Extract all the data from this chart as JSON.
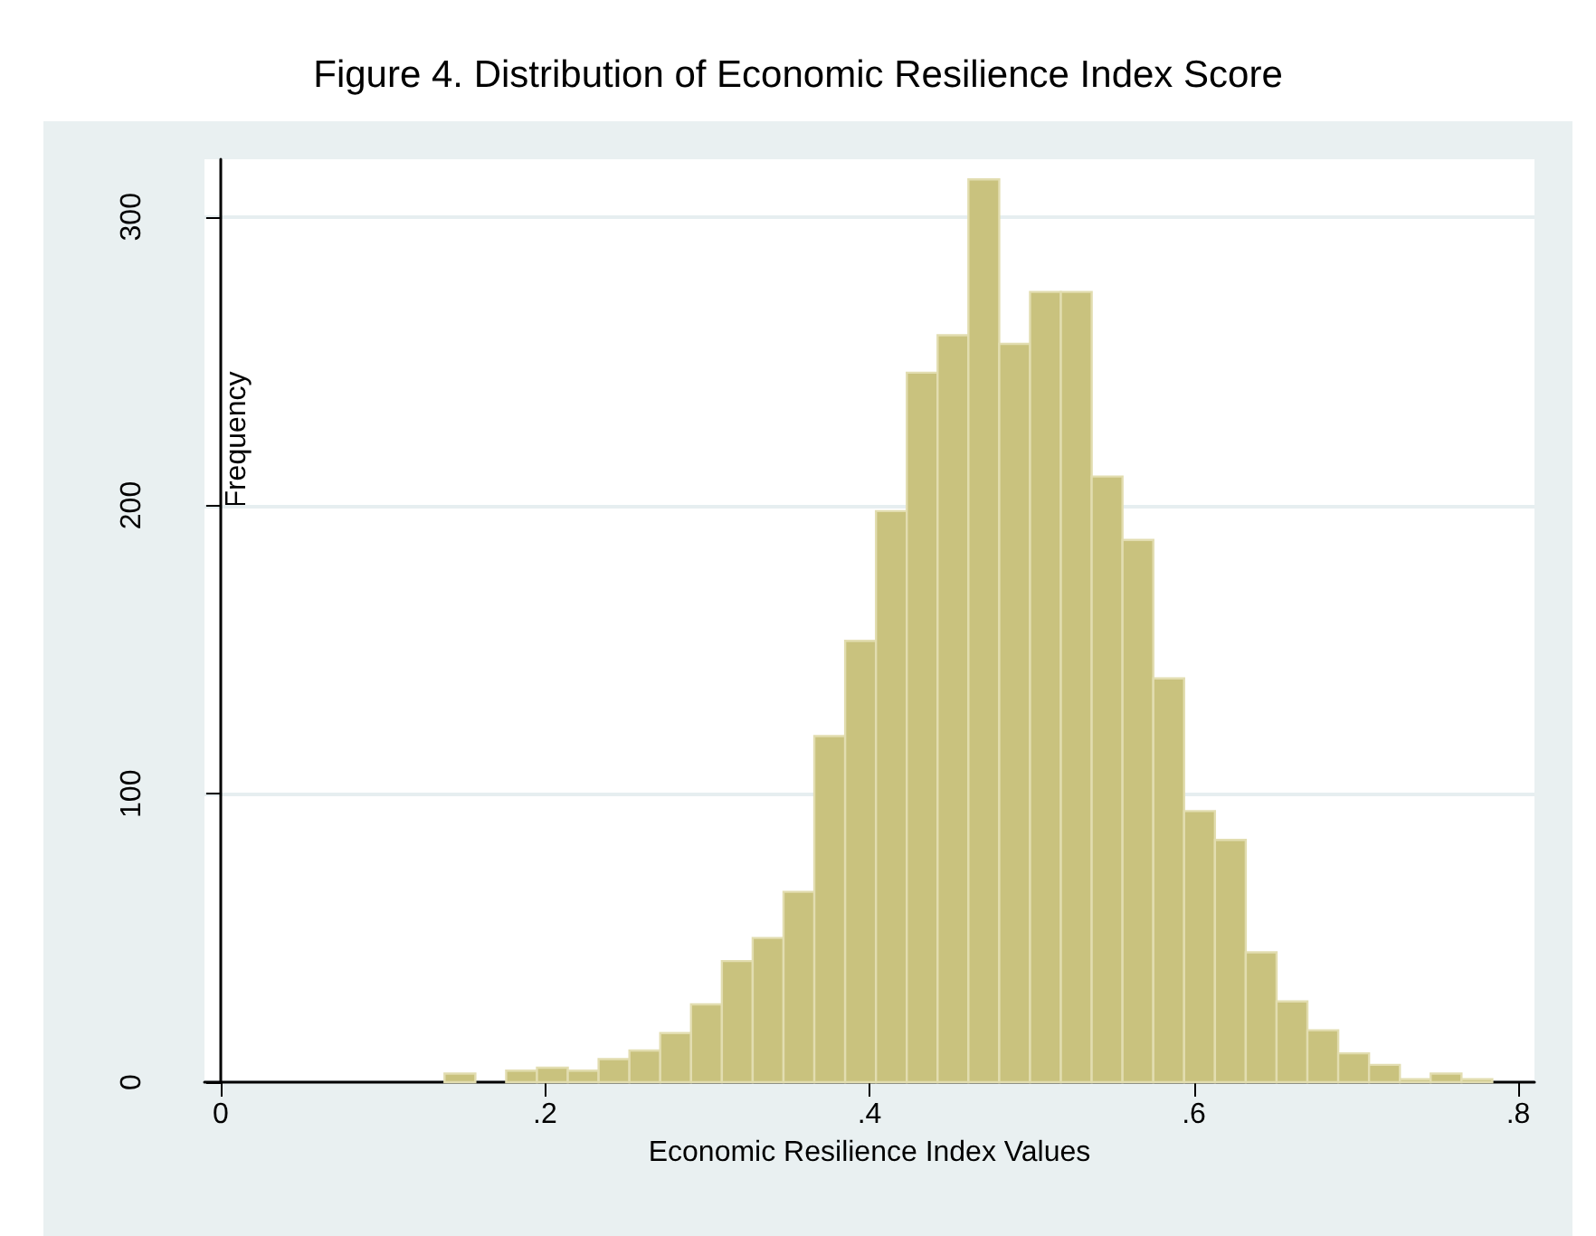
{
  "chart_data": {
    "type": "histogram",
    "title": "Figure 4. Distribution of Economic Resilience Index Score",
    "xlabel": "Economic Resilience Index Values",
    "ylabel": "Frequency",
    "bins": [
      0.138,
      0.157,
      0.176,
      0.195,
      0.214,
      0.233,
      0.252,
      0.271,
      0.29,
      0.309,
      0.328,
      0.347,
      0.366,
      0.385,
      0.404,
      0.423,
      0.442,
      0.461,
      0.48,
      0.499,
      0.518,
      0.537,
      0.556,
      0.575,
      0.594,
      0.613,
      0.632,
      0.651,
      0.67,
      0.689,
      0.708,
      0.727,
      0.746,
      0.765,
      0.784
    ],
    "values": [
      3,
      0,
      4,
      5,
      4,
      8,
      11,
      17,
      27,
      42,
      50,
      66,
      120,
      153,
      198,
      246,
      259,
      313,
      256,
      274,
      274,
      210,
      188,
      140,
      94,
      84,
      45,
      28,
      18,
      10,
      6,
      1,
      3,
      1
    ],
    "color": "#c9c27e",
    "xlim": [
      -0.01,
      0.81
    ],
    "xticks": [
      0,
      {
        "value": 0.2,
        "label": ".2"
      },
      {
        "value": 0.4,
        "label": ".4"
      },
      {
        "value": 0.6,
        "label": ".6"
      },
      {
        "value": 0.8,
        "label": ".8"
      }
    ],
    "ylim": [
      0,
      320
    ],
    "yticks": [
      0,
      100,
      200,
      300
    ],
    "grid": "y"
  }
}
